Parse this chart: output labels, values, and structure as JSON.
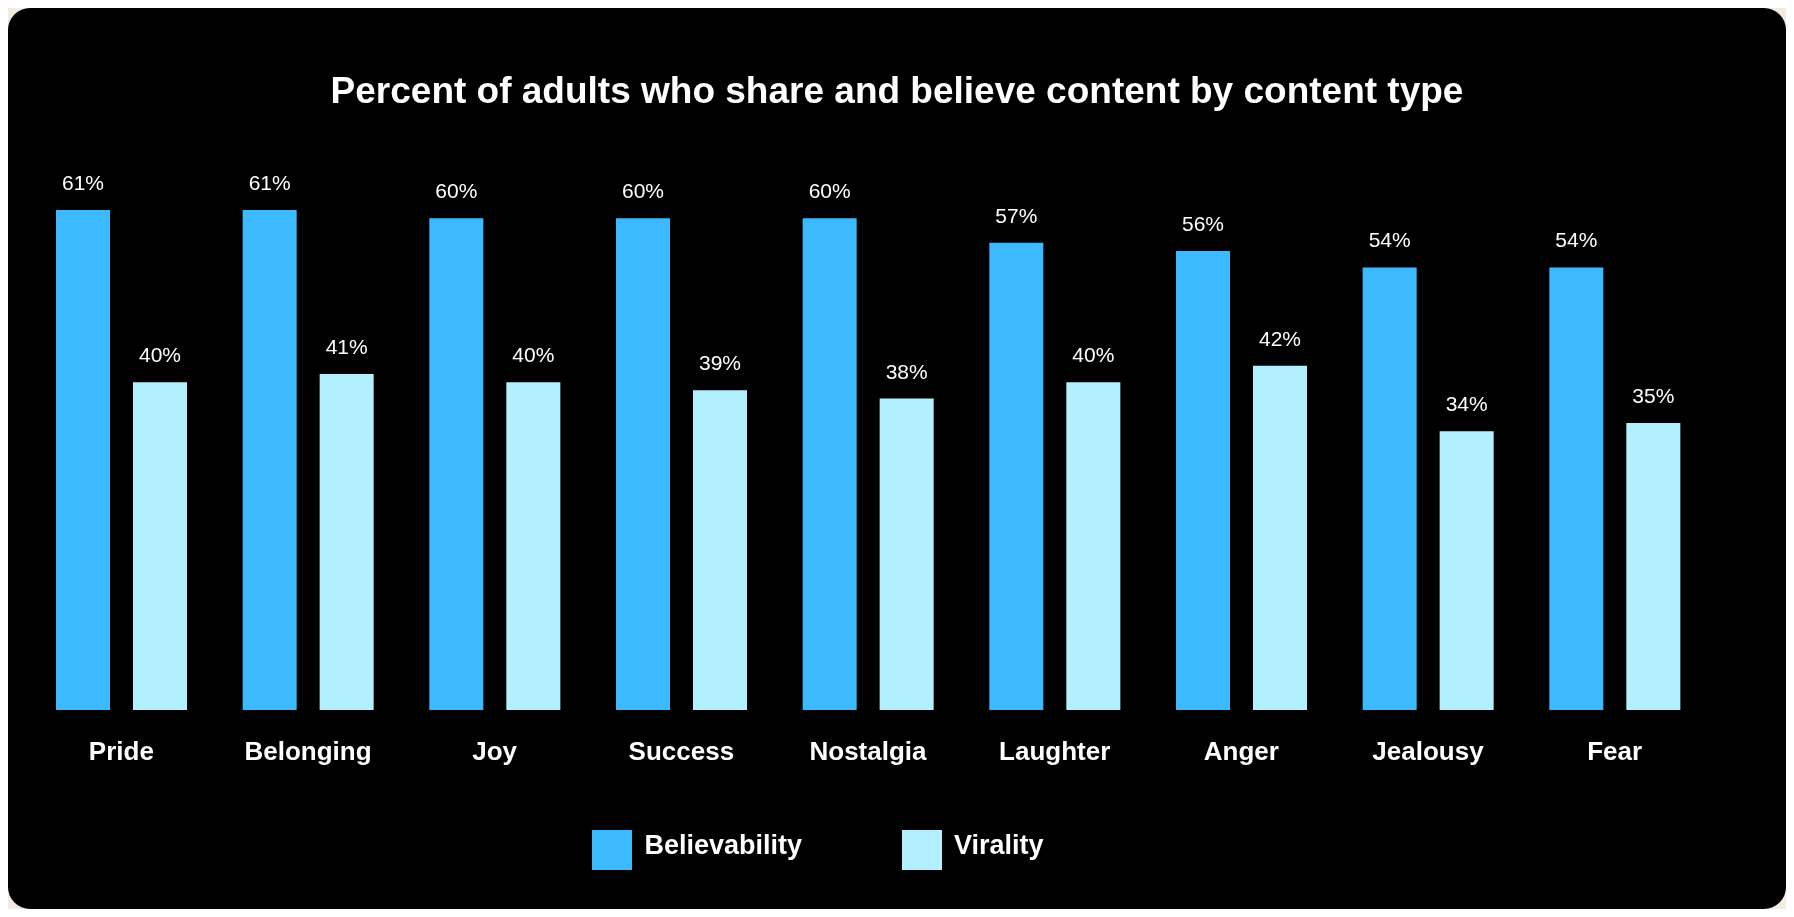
{
  "chart_data": {
    "type": "bar",
    "title": "Percent of adults who share and believe content by content type",
    "categories": [
      "Pride",
      "Belonging",
      "Joy",
      "Success",
      "Nostalgia",
      "Laughter",
      "Anger",
      "Jealousy",
      "Fear"
    ],
    "series": [
      {
        "name": "Believability",
        "color": "#3db9ff",
        "values": [
          61,
          61,
          60,
          60,
          60,
          57,
          56,
          54,
          54
        ],
        "value_labels": [
          "61%",
          "61%",
          "60%",
          "60%",
          "60%",
          "57%",
          "56%",
          "54%",
          "54%"
        ]
      },
      {
        "name": "Virality",
        "color": "#b3f0ff",
        "values": [
          40,
          41,
          40,
          39,
          38,
          40,
          42,
          34,
          35
        ],
        "value_labels": [
          "40%",
          "41%",
          "40%",
          "39%",
          "38%",
          "40%",
          "42%",
          "34%",
          "35%"
        ]
      }
    ],
    "legend": "bottom",
    "grid": false
  }
}
